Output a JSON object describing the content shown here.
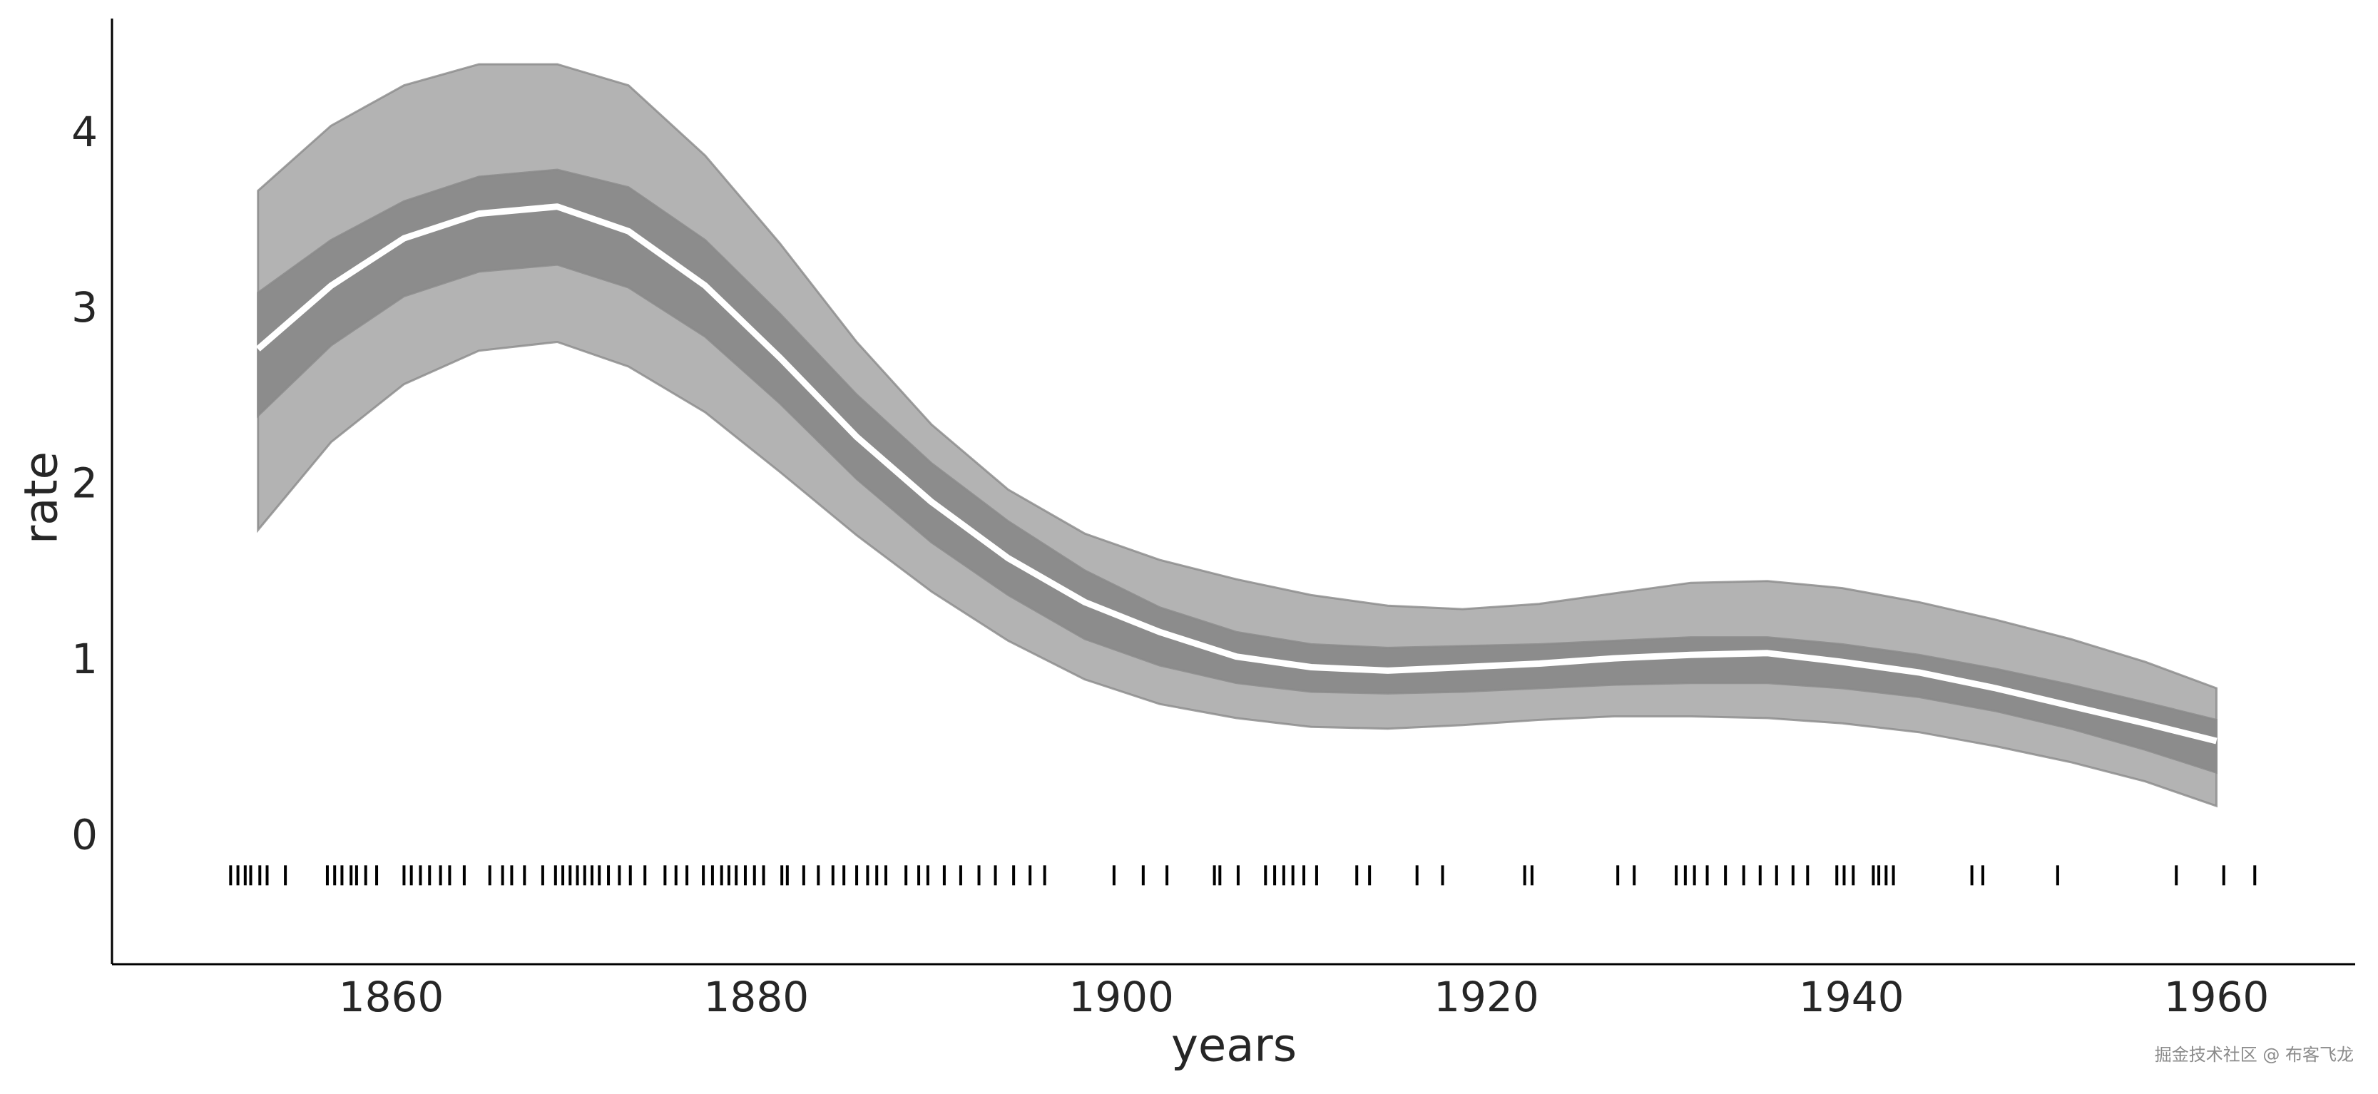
{
  "chart_data": {
    "type": "line",
    "x_label": "years",
    "y_label": "rate",
    "x": [
      1852.7,
      1856.7,
      1860.7,
      1864.8,
      1869.1,
      1873.0,
      1877.2,
      1881.3,
      1885.5,
      1889.6,
      1893.8,
      1898.0,
      1902.1,
      1906.3,
      1910.4,
      1914.6,
      1918.7,
      1922.9,
      1927.0,
      1931.2,
      1935.4,
      1939.5,
      1943.7,
      1947.9,
      1952.0,
      1956.1,
      1960.0
    ],
    "bands": [
      {
        "color": "#b3b3b3",
        "upper": [
          3.68,
          4.05,
          4.28,
          4.4,
          4.4,
          4.28,
          3.88,
          3.38,
          2.82,
          2.35,
          1.98,
          1.73,
          1.58,
          1.47,
          1.38,
          1.32,
          1.3,
          1.33,
          1.39,
          1.45,
          1.46,
          1.42,
          1.34,
          1.24,
          1.13,
          1.0,
          0.85
        ],
        "lower": [
          1.75,
          2.25,
          2.58,
          2.77,
          2.82,
          2.68,
          2.42,
          2.08,
          1.72,
          1.4,
          1.12,
          0.9,
          0.76,
          0.68,
          0.63,
          0.62,
          0.64,
          0.67,
          0.69,
          0.69,
          0.68,
          0.65,
          0.6,
          0.52,
          0.43,
          0.32,
          0.18
        ]
      },
      {
        "color": "#8c8c8c",
        "upper": [
          3.1,
          3.4,
          3.62,
          3.76,
          3.8,
          3.7,
          3.4,
          2.98,
          2.52,
          2.13,
          1.8,
          1.52,
          1.31,
          1.17,
          1.1,
          1.08,
          1.09,
          1.1,
          1.12,
          1.14,
          1.14,
          1.1,
          1.04,
          0.96,
          0.87,
          0.77,
          0.67
        ],
        "lower": [
          2.4,
          2.8,
          3.08,
          3.22,
          3.26,
          3.13,
          2.85,
          2.47,
          2.04,
          1.68,
          1.38,
          1.13,
          0.98,
          0.88,
          0.83,
          0.82,
          0.83,
          0.85,
          0.87,
          0.88,
          0.88,
          0.85,
          0.8,
          0.72,
          0.62,
          0.5,
          0.37
        ]
      }
    ],
    "line": {
      "color": "#ffffff",
      "values": [
        2.78,
        3.14,
        3.41,
        3.55,
        3.59,
        3.45,
        3.14,
        2.73,
        2.28,
        1.91,
        1.59,
        1.34,
        1.17,
        1.03,
        0.97,
        0.95,
        0.97,
        0.99,
        1.02,
        1.04,
        1.05,
        1.0,
        0.94,
        0.85,
        0.75,
        0.65,
        0.55
      ]
    },
    "rug": {
      "color": "#000000",
      "x": [
        1851.2,
        1851.6,
        1852.0,
        1852.3,
        1852.8,
        1853.2,
        1854.2,
        1856.5,
        1856.9,
        1857.3,
        1857.8,
        1858.1,
        1858.6,
        1859.2,
        1860.7,
        1861.1,
        1861.6,
        1862.1,
        1862.7,
        1863.2,
        1864.0,
        1865.4,
        1866.1,
        1866.6,
        1867.3,
        1868.3,
        1869.0,
        1869.4,
        1869.8,
        1870.2,
        1870.6,
        1871.0,
        1871.4,
        1871.9,
        1872.5,
        1873.1,
        1873.9,
        1875.0,
        1875.6,
        1876.2,
        1877.1,
        1877.6,
        1878.1,
        1878.5,
        1878.9,
        1879.4,
        1879.9,
        1880.4,
        1881.4,
        1881.7,
        1882.6,
        1883.4,
        1884.2,
        1884.8,
        1885.5,
        1886.1,
        1886.6,
        1887.1,
        1888.2,
        1888.9,
        1889.4,
        1890.3,
        1891.2,
        1892.2,
        1893.1,
        1894.1,
        1895.0,
        1895.8,
        1899.6,
        1901.2,
        1902.5,
        1905.1,
        1905.4,
        1906.4,
        1907.9,
        1908.4,
        1908.9,
        1909.4,
        1910.0,
        1910.7,
        1912.9,
        1913.6,
        1916.2,
        1917.6,
        1922.1,
        1922.5,
        1927.2,
        1928.1,
        1930.4,
        1930.9,
        1931.4,
        1932.1,
        1933.1,
        1934.1,
        1935.0,
        1935.9,
        1936.8,
        1937.6,
        1939.2,
        1939.6,
        1940.1,
        1941.2,
        1941.5,
        1941.9,
        1942.3,
        1946.6,
        1947.2,
        1951.3,
        1957.8,
        1960.4,
        1962.1
      ]
    },
    "xlim": [
      1844.7,
      1967.6
    ],
    "ylim": [
      -0.72,
      4.66
    ],
    "xticks": [
      1860,
      1880,
      1900,
      1920,
      1940,
      1960
    ],
    "yticks": [
      0,
      1,
      2,
      3,
      4
    ],
    "grid": false
  },
  "watermark": "掘金技术社区 @ 布客飞龙"
}
